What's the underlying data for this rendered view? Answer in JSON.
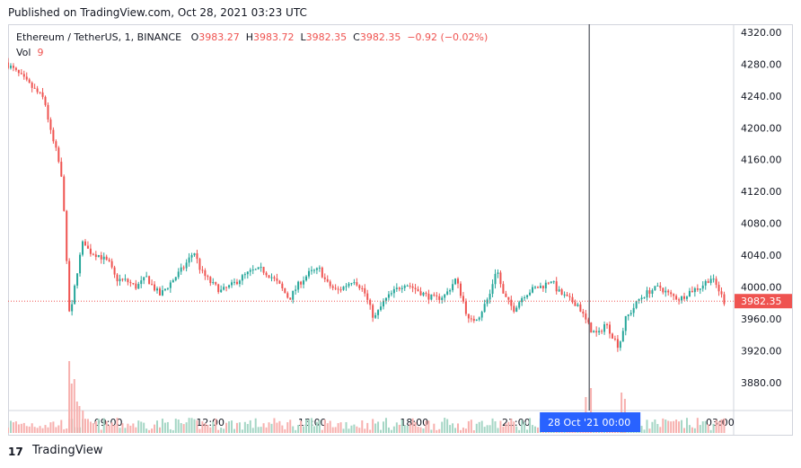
{
  "header": {
    "published": "Published on TradingView.com, Oct 28, 2021 03:23 UTC"
  },
  "legend": {
    "symbol": "Ethereum / TetherUS, 1, BINANCE",
    "o_label": "O",
    "o_value": "3983.27",
    "h_label": "H",
    "h_value": "3983.72",
    "l_label": "L",
    "l_value": "3982.35",
    "c_label": "C",
    "c_value": "3982.35",
    "change": "−0.92 (−0.02%)",
    "vol_label": "Vol",
    "vol_value": "9"
  },
  "footer": {
    "brand": "TradingView",
    "logo_text": "17"
  },
  "colors": {
    "up": "#26a69a",
    "down": "#ef5350",
    "vol_up": "#a5d6c5",
    "vol_down": "#f7b0ae",
    "price_label_bg": "#ef5350",
    "crosshair_label_bg": "#2962ff"
  },
  "chart_data": {
    "type": "candlestick",
    "title": "Ethereum / TetherUS, 1, BINANCE",
    "ylim": [
      3845,
      4330
    ],
    "y_ticks": [
      "4320.00",
      "4280.00",
      "4240.00",
      "4200.00",
      "4160.00",
      "4120.00",
      "4080.00",
      "4040.00",
      "4000.00",
      "3960.00",
      "3920.00",
      "3880.00"
    ],
    "y_tick_values": [
      4320,
      4280,
      4240,
      4200,
      4160,
      4120,
      4080,
      4040,
      4000,
      3960,
      3920,
      3880
    ],
    "x_ticks": [
      "09:00",
      "12:00",
      "15:00",
      "18:00",
      "21:00",
      "00:00",
      "03:00"
    ],
    "x_tick_positions": [
      1.0,
      4.0,
      7.0,
      10.0,
      13.0,
      16.0,
      19.0
    ],
    "x_range": [
      -1.95,
      19.4
    ],
    "crosshair": {
      "x": 15.15,
      "label": "28 Oct '21   00:00"
    },
    "last_price": {
      "value": 3982.35,
      "label": "3982.35"
    },
    "price_path": [
      [
        -1.95,
        4282
      ],
      [
        -1.5,
        4265
      ],
      [
        -1.2,
        4252
      ],
      [
        -0.95,
        4242
      ],
      [
        -0.8,
        4235
      ],
      [
        -0.6,
        4190
      ],
      [
        -0.45,
        4170
      ],
      [
        -0.35,
        4150
      ],
      [
        -0.25,
        4120
      ],
      [
        -0.15,
        4030
      ],
      [
        -0.05,
        3955
      ],
      [
        0.05,
        3990
      ],
      [
        0.2,
        4030
      ],
      [
        0.35,
        4060
      ],
      [
        0.5,
        4045
      ],
      [
        0.8,
        4040
      ],
      [
        1.1,
        4030
      ],
      [
        1.3,
        4010
      ],
      [
        1.6,
        4008
      ],
      [
        1.9,
        4000
      ],
      [
        2.2,
        4012
      ],
      [
        2.4,
        4000
      ],
      [
        2.6,
        3990
      ],
      [
        2.9,
        4005
      ],
      [
        3.3,
        4025
      ],
      [
        3.6,
        4045
      ],
      [
        3.8,
        4020
      ],
      [
        4.1,
        4005
      ],
      [
        4.4,
        3995
      ],
      [
        4.7,
        4002
      ],
      [
        5.0,
        4012
      ],
      [
        5.3,
        4020
      ],
      [
        5.6,
        4022
      ],
      [
        5.9,
        4012
      ],
      [
        6.1,
        4003
      ],
      [
        6.4,
        3985
      ],
      [
        6.7,
        4005
      ],
      [
        7.0,
        4018
      ],
      [
        7.3,
        4022
      ],
      [
        7.5,
        4005
      ],
      [
        7.8,
        3995
      ],
      [
        8.0,
        4000
      ],
      [
        8.3,
        4010
      ],
      [
        8.6,
        3995
      ],
      [
        8.9,
        3960
      ],
      [
        9.2,
        3983
      ],
      [
        9.5,
        3995
      ],
      [
        9.8,
        4005
      ],
      [
        10.1,
        3998
      ],
      [
        10.4,
        3990
      ],
      [
        10.7,
        3985
      ],
      [
        11.0,
        3990
      ],
      [
        11.3,
        4010
      ],
      [
        11.5,
        3985
      ],
      [
        11.7,
        3955
      ],
      [
        12.0,
        3965
      ],
      [
        12.3,
        3990
      ],
      [
        12.5,
        4025
      ],
      [
        12.7,
        3990
      ],
      [
        13.0,
        3972
      ],
      [
        13.3,
        3990
      ],
      [
        13.6,
        3998
      ],
      [
        13.9,
        4002
      ],
      [
        14.1,
        4010
      ],
      [
        14.3,
        3995
      ],
      [
        14.6,
        3985
      ],
      [
        14.9,
        3978
      ],
      [
        15.1,
        3960
      ],
      [
        15.3,
        3945
      ],
      [
        15.5,
        3940
      ],
      [
        15.7,
        3955
      ],
      [
        15.9,
        3940
      ],
      [
        16.1,
        3925
      ],
      [
        16.3,
        3960
      ],
      [
        16.5,
        3972
      ],
      [
        16.7,
        3985
      ],
      [
        17.0,
        3995
      ],
      [
        17.3,
        4000
      ],
      [
        17.6,
        3990
      ],
      [
        17.9,
        3985
      ],
      [
        18.2,
        3995
      ],
      [
        18.5,
        4000
      ],
      [
        18.8,
        4012
      ],
      [
        19.0,
        4000
      ],
      [
        19.2,
        3982
      ]
    ],
    "volume_scale": {
      "y_at_0": 455,
      "px_per_unit": 1
    },
    "volume_spikes": [
      [
        -0.15,
        80
      ],
      [
        -0.08,
        55
      ],
      [
        0.0,
        60
      ],
      [
        0.08,
        35
      ],
      [
        0.15,
        30
      ],
      [
        0.25,
        25
      ],
      [
        15.05,
        40
      ],
      [
        15.2,
        50
      ],
      [
        16.1,
        45
      ],
      [
        16.2,
        38
      ]
    ],
    "annotations": {
      "volume_label": "Vol",
      "volume_value": "9"
    }
  }
}
